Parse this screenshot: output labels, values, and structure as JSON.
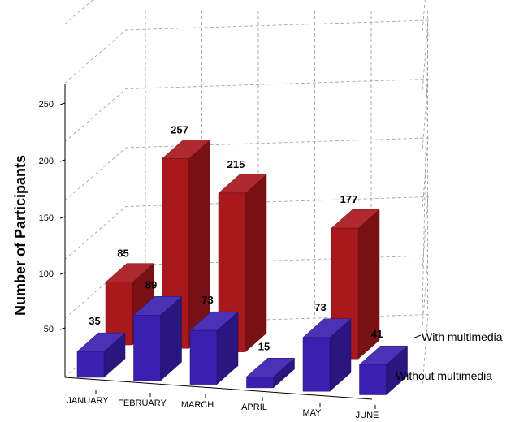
{
  "chart_data": {
    "type": "bar",
    "style": "3d",
    "categories": [
      "JANUARY",
      "FEBRUARY",
      "MARCH",
      "APRIL",
      "MAY",
      "JUNE"
    ],
    "series": [
      {
        "name": "Without multimedia",
        "values": [
          35,
          89,
          73,
          15,
          73,
          41
        ],
        "color": "#3a1fb0",
        "labels": [
          "35",
          "89",
          "73",
          "15",
          "73",
          "41"
        ]
      },
      {
        "name": "With multimedia",
        "values": [
          85,
          257,
          215,
          null,
          177,
          null
        ],
        "color": "#a8181c",
        "labels": [
          "85",
          "257",
          "215",
          "",
          "177",
          ""
        ]
      }
    ],
    "ylabel": "Number of Participants",
    "yticks": [
      "50",
      "100",
      "150",
      "200",
      "250"
    ],
    "ylim": [
      0,
      300
    ],
    "grid": true,
    "legend": [
      "With multimedia",
      "Without multimedia"
    ]
  }
}
